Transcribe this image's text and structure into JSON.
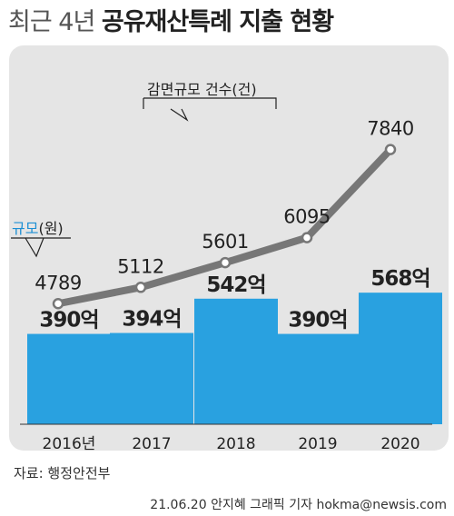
{
  "header": {
    "title_light": "최근 4년",
    "title_bold": "공유재산특례 지출 현황"
  },
  "colors": {
    "bar": "#29a1e0",
    "line": "#777777",
    "panel": "#e5e5e5",
    "legend_blue": "#1c8fd4"
  },
  "chart_data": {
    "type": "bar",
    "categories": [
      "2016년",
      "2017",
      "2018",
      "2019",
      "2020"
    ],
    "series": [
      {
        "name": "규모(원)",
        "type": "bar",
        "values": [
          390,
          394,
          542,
          390,
          568
        ],
        "labels": [
          "390억",
          "394억",
          "542억",
          "390억",
          "568억"
        ]
      },
      {
        "name": "감면규모 건수(건)",
        "type": "line",
        "values": [
          4789,
          5112,
          5601,
          6095,
          7840
        ],
        "labels": [
          "4789",
          "5112",
          "5601",
          "6095",
          "7840"
        ]
      }
    ]
  },
  "legend": {
    "count_label": "감면규모 건수(건)",
    "size_label_colored": "규모",
    "size_label_unit": "(원)"
  },
  "footer": {
    "source": "자료: 행정안전부",
    "credit": "21.06.20 안지혜 그래픽 기자 hokma@newsis.com"
  }
}
